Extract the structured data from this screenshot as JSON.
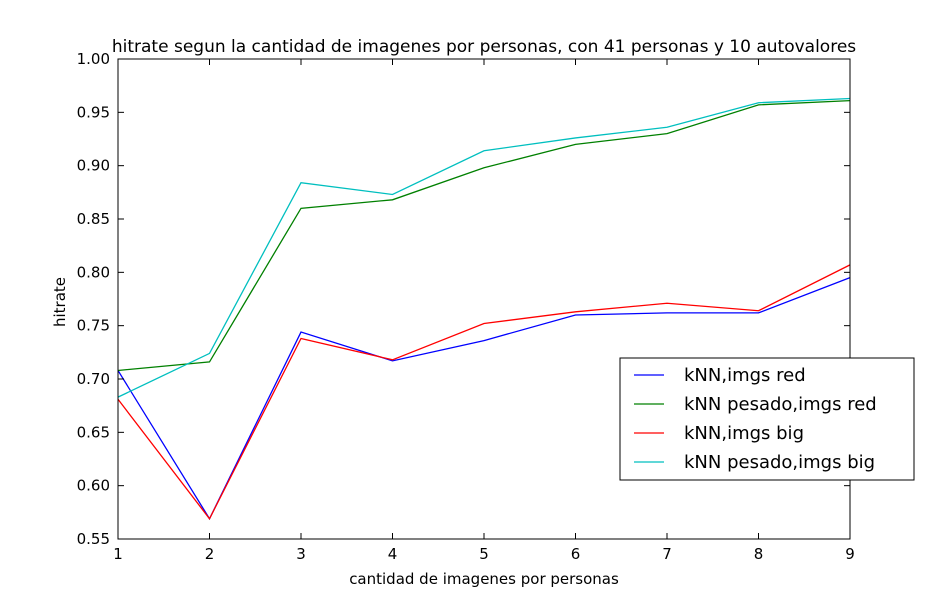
{
  "chart_data": {
    "type": "line",
    "title": "hitrate segun la cantidad de imagenes por personas, con 41 personas y 10 autovalores",
    "xlabel": "cantidad de imagenes por personas",
    "ylabel": "hitrate",
    "x": [
      1,
      2,
      3,
      4,
      5,
      6,
      7,
      8,
      9
    ],
    "xlim": [
      1,
      9
    ],
    "ylim": [
      0.55,
      1.0
    ],
    "xticks": [
      "1",
      "2",
      "3",
      "4",
      "5",
      "6",
      "7",
      "8",
      "9"
    ],
    "yticks": [
      "0.55",
      "0.60",
      "0.65",
      "0.70",
      "0.75",
      "0.80",
      "0.85",
      "0.90",
      "0.95",
      "1.00"
    ],
    "grid": false,
    "legend_position": "right",
    "series": [
      {
        "name": "kNN,imgs red",
        "color": "#0000ff",
        "values": [
          0.708,
          0.569,
          0.744,
          0.717,
          0.736,
          0.76,
          0.762,
          0.762,
          0.795
        ]
      },
      {
        "name": "kNN pesado,imgs red",
        "color": "#008000",
        "values": [
          0.708,
          0.716,
          0.86,
          0.868,
          0.898,
          0.92,
          0.93,
          0.957,
          0.961
        ]
      },
      {
        "name": "kNN,imgs big",
        "color": "#ff0000",
        "values": [
          0.681,
          0.569,
          0.738,
          0.718,
          0.752,
          0.763,
          0.771,
          0.764,
          0.807
        ]
      },
      {
        "name": "kNN pesado,imgs big",
        "color": "#00bfbf",
        "values": [
          0.683,
          0.724,
          0.884,
          0.873,
          0.914,
          0.926,
          0.936,
          0.959,
          0.963
        ]
      }
    ]
  }
}
